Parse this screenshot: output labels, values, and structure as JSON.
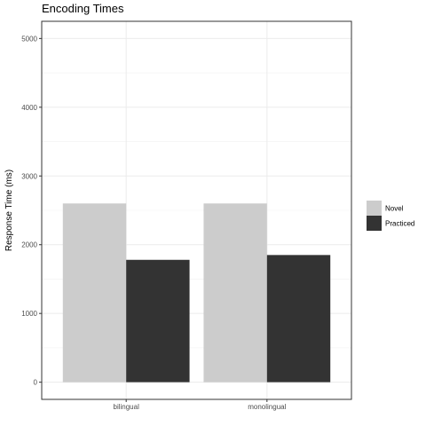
{
  "chart_data": {
    "type": "bar",
    "title": "Encoding Times",
    "xlabel": "",
    "ylabel": "Response Time (ms)",
    "categories": [
      "bilingual",
      "monolingual"
    ],
    "series": [
      {
        "name": "Novel",
        "values": [
          2600,
          2600
        ],
        "color": "#cccccc"
      },
      {
        "name": "Practiced",
        "values": [
          1780,
          1850
        ],
        "color": "#333333"
      }
    ],
    "ylim": [
      -250,
      5250
    ],
    "yticks": [
      0,
      1000,
      2000,
      3000,
      4000,
      5000
    ],
    "grid": true,
    "legend_position": "right"
  }
}
